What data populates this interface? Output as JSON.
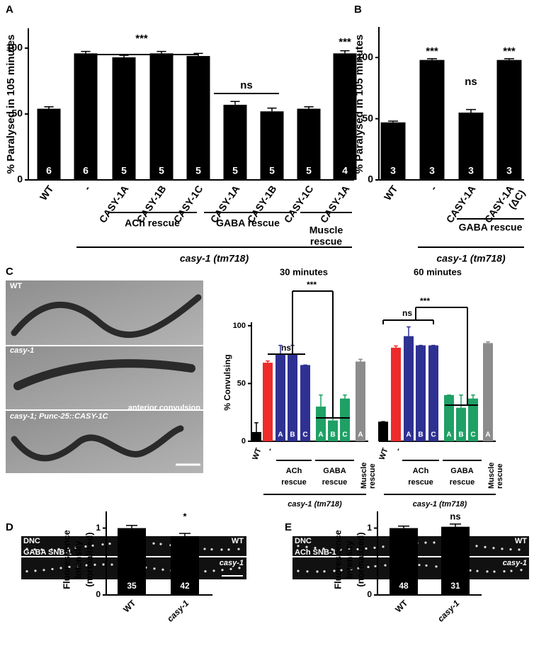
{
  "panels": [
    "A",
    "B",
    "C",
    "D",
    "E"
  ],
  "micrograph_labels": {
    "C": [
      "WT",
      "casy-1",
      "anterior convulsion",
      "casy-1; Punc-25::CASY-1C"
    ],
    "D": [
      "DNC",
      "GABA SNB-1",
      "WT",
      "casy-1"
    ],
    "E": [
      "DNC",
      "ACh SNB-1",
      "WT",
      "casy-1"
    ]
  },
  "chart_data": [
    {
      "type": "bar",
      "y_label": "% Paralysed in 105 minutes",
      "categories": [
        "WT",
        "-",
        "CASY-1A",
        "CASY-1B",
        "CASY-1C",
        "CASY-1A",
        "CASY-1B",
        "CASY-1C",
        "CASY-1A"
      ],
      "values": [
        54,
        96,
        93,
        96,
        94,
        57,
        52,
        54,
        96
      ],
      "errors": [
        1.5,
        1.5,
        1.5,
        1.5,
        2,
        2.5,
        2.5,
        1.5,
        2
      ],
      "n": [
        6,
        6,
        5,
        5,
        5,
        5,
        5,
        5,
        4
      ],
      "color": "#000000",
      "ylim": [
        0,
        115
      ],
      "yticks": [
        0,
        50,
        100
      ],
      "annotations": [
        "***",
        "ns",
        "***"
      ],
      "groups": [
        [
          "ACh rescue"
        ],
        [
          "GABA rescue"
        ],
        [
          "Muscle",
          "rescue"
        ]
      ],
      "strain": "casy-1 (tm718)"
    },
    {
      "type": "bar",
      "y_label": "% Paralysed in 105 minutes",
      "categories": [
        "WT",
        "-",
        "CASY-1A",
        [
          "CASY-1A",
          "(ΔC)"
        ]
      ],
      "values": [
        47,
        98,
        55,
        98
      ],
      "errors": [
        1,
        1,
        2.5,
        1
      ],
      "n": [
        3,
        3,
        3,
        3
      ],
      "color": "#000000",
      "ylim": [
        0,
        125
      ],
      "yticks": [
        0,
        50,
        100
      ],
      "annotations": [
        "***",
        "ns",
        "***"
      ],
      "groups": [
        [
          "GABA rescue"
        ]
      ],
      "strain": "casy-1 (tm718)"
    },
    {
      "type": "bar",
      "title": "30 minutes",
      "y_label": "% Convulsing",
      "categories": [
        "WT",
        "-",
        null,
        null,
        null,
        null,
        null,
        null,
        null
      ],
      "bar_labels": [
        null,
        null,
        "A",
        "B",
        "C",
        "A",
        "B",
        "C",
        "A"
      ],
      "values": [
        8,
        68,
        75,
        75,
        66,
        30,
        18,
        37,
        69
      ],
      "errors": [
        8,
        1.5,
        8,
        8,
        0,
        10,
        2,
        3,
        2
      ],
      "colors": [
        "#000000",
        "#ee2a2a",
        "#2e3192",
        "#2e3192",
        "#2e3192",
        "#1fa065",
        "#1fa065",
        "#1fa065",
        "#8c8c8c"
      ],
      "ylim": [
        0,
        103
      ],
      "yticks": [
        0,
        50,
        100
      ],
      "annotations": [
        "ns",
        "***"
      ],
      "groups": [
        [
          "ACh",
          "rescue"
        ],
        [
          "GABA",
          "rescue"
        ],
        [
          "Muscle",
          "rescue"
        ]
      ],
      "strain": "casy-1 (tm718)"
    },
    {
      "type": "bar",
      "title": "60 minutes",
      "categories": [
        "WT",
        "-",
        null,
        null,
        null,
        null,
        null,
        null,
        null
      ],
      "bar_labels": [
        null,
        null,
        "A",
        "B",
        "C",
        "A",
        "B",
        "C",
        "A"
      ],
      "values": [
        17,
        81,
        91,
        83,
        83,
        40,
        29,
        37,
        85
      ],
      "errors": [
        0,
        1.5,
        8,
        0,
        0,
        0,
        11,
        3,
        1
      ],
      "colors": [
        "#000000",
        "#ee2a2a",
        "#2e3192",
        "#2e3192",
        "#2e3192",
        "#1fa065",
        "#1fa065",
        "#1fa065",
        "#8c8c8c"
      ],
      "ylim": [
        0,
        103
      ],
      "annotations": [
        "ns",
        "***"
      ],
      "groups": [
        [
          "ACh",
          "rescue"
        ],
        [
          "GABA",
          "rescue"
        ],
        [
          "Muscle",
          "rescue"
        ]
      ],
      "strain": "casy-1 (tm718)"
    },
    {
      "type": "bar",
      "y_label": [
        "Fluorescence",
        "Intensity",
        "(normalized)"
      ],
      "categories": [
        "WT",
        "casy-1"
      ],
      "values": [
        1.0,
        0.88
      ],
      "errors": [
        0.04,
        0.04
      ],
      "n": [
        35,
        42
      ],
      "color": "#000000",
      "ylim": [
        0,
        1.25
      ],
      "yticks": [
        0,
        1
      ],
      "annotations": [
        "*"
      ]
    },
    {
      "type": "bar",
      "y_label": [
        "Fluorescence",
        "Intensity",
        "(normalized)"
      ],
      "categories": [
        "WT",
        "casy-1"
      ],
      "values": [
        1.0,
        1.02
      ],
      "errors": [
        0.03,
        0.04
      ],
      "n": [
        48,
        31
      ],
      "color": "#000000",
      "ylim": [
        0,
        1.25
      ],
      "yticks": [
        0,
        1
      ],
      "annotations": [
        "ns"
      ]
    }
  ]
}
